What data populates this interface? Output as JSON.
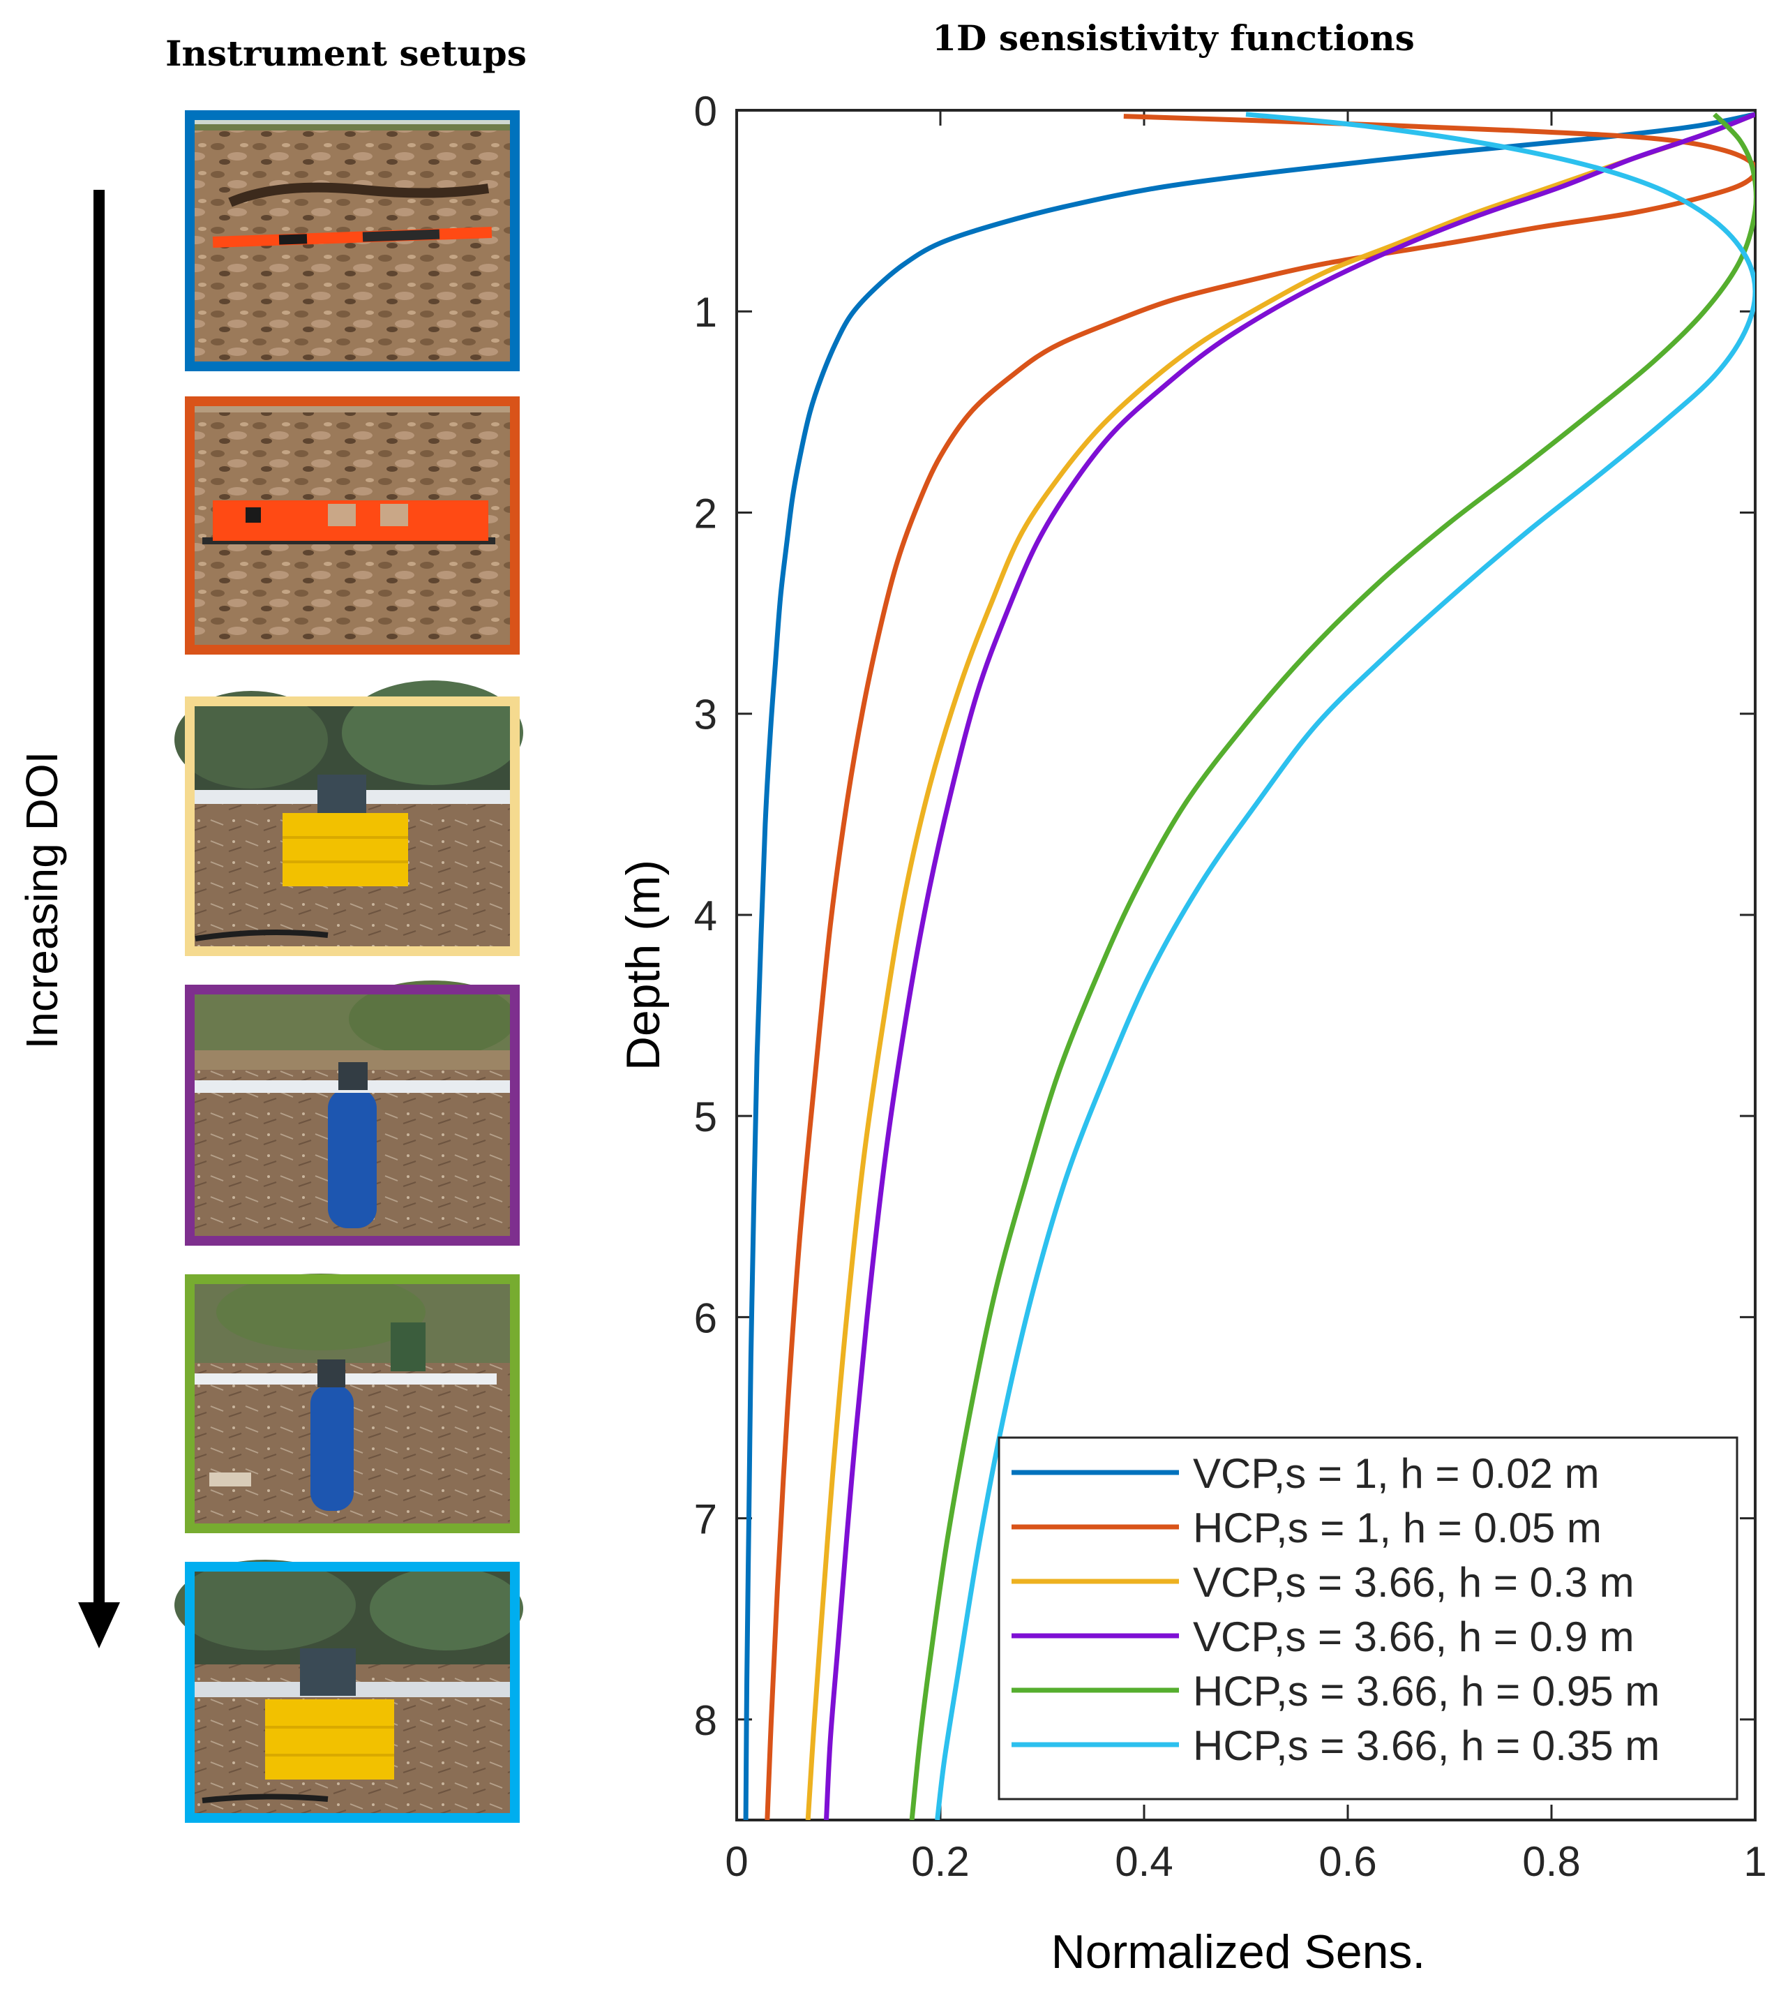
{
  "left_panel": {
    "title": "Instrument setups",
    "arrow_label": "Increasing DOI",
    "setups": [
      {
        "label": "VCP,s = 1, h = 0.02 m",
        "frame_color": "#0072BD",
        "scene": "plowed-field",
        "device": "thin-orange-bar"
      },
      {
        "label": "HCP,s = 1, h = 0.05 m",
        "frame_color": "#D95319",
        "scene": "plowed-field",
        "device": "orange-probe-box"
      },
      {
        "label": "VCP,s = 3.66, h = 0.3 m",
        "frame_color": "#F5DA8F",
        "scene": "orchard",
        "device": "boom-on-yellow-crate"
      },
      {
        "label": "VCP,s = 3.66, h = 0.9 m",
        "frame_color": "#7E2F8E",
        "scene": "garden",
        "device": "boom-on-blue-barrel"
      },
      {
        "label": "HCP,s = 3.66, h = 0.95 m",
        "frame_color": "#77AC30",
        "scene": "garden",
        "device": "boom-on-blue-barrel"
      },
      {
        "label": "HCP,s = 3.66, h = 0.35 m",
        "frame_color": "#00AEEF",
        "scene": "orchard",
        "device": "boom-on-yellow-crate"
      }
    ]
  },
  "chart_data": {
    "type": "line",
    "title": "1D sensistivity functions",
    "xlabel": "Normalized Sens.",
    "ylabel": "Depth (m)",
    "xlim": [
      0,
      1
    ],
    "ylim": [
      0,
      8.5
    ],
    "y_reversed": true,
    "x_ticks": [
      "0",
      "0.2",
      "0.4",
      "0.6",
      "0.8",
      "1"
    ],
    "y_ticks": [
      "0",
      "1",
      "2",
      "3",
      "4",
      "5",
      "6",
      "7",
      "8"
    ],
    "grid": false,
    "legend_position": "bottom-right",
    "series": [
      {
        "name": "VCP,s = 1, h = 0.02 m",
        "color": "#0072BD",
        "points": [
          [
            1.0,
            0.02
          ],
          [
            0.94,
            0.08
          ],
          [
            0.84,
            0.14
          ],
          [
            0.7,
            0.21
          ],
          [
            0.54,
            0.3
          ],
          [
            0.42,
            0.38
          ],
          [
            0.33,
            0.47
          ],
          [
            0.26,
            0.56
          ],
          [
            0.2,
            0.66
          ],
          [
            0.163,
            0.77
          ],
          [
            0.133,
            0.9
          ],
          [
            0.112,
            1.02
          ],
          [
            0.097,
            1.16
          ],
          [
            0.083,
            1.33
          ],
          [
            0.072,
            1.5
          ],
          [
            0.063,
            1.7
          ],
          [
            0.055,
            1.92
          ],
          [
            0.049,
            2.16
          ],
          [
            0.043,
            2.42
          ],
          [
            0.038,
            2.75
          ],
          [
            0.033,
            3.1
          ],
          [
            0.028,
            3.55
          ],
          [
            0.024,
            4.1
          ],
          [
            0.02,
            4.7
          ],
          [
            0.017,
            5.4
          ],
          [
            0.014,
            6.2
          ],
          [
            0.012,
            7.0
          ],
          [
            0.01,
            7.8
          ],
          [
            0.009,
            8.5
          ]
        ]
      },
      {
        "name": "HCP,s = 1, h = 0.05 m",
        "color": "#D95319",
        "points": [
          [
            0.38,
            0.03
          ],
          [
            0.56,
            0.06
          ],
          [
            0.76,
            0.1
          ],
          [
            0.9,
            0.14
          ],
          [
            0.97,
            0.2
          ],
          [
            1.0,
            0.28
          ],
          [
            0.99,
            0.36
          ],
          [
            0.95,
            0.43
          ],
          [
            0.88,
            0.51
          ],
          [
            0.79,
            0.58
          ],
          [
            0.7,
            0.66
          ],
          [
            0.58,
            0.76
          ],
          [
            0.5,
            0.85
          ],
          [
            0.43,
            0.94
          ],
          [
            0.37,
            1.05
          ],
          [
            0.31,
            1.18
          ],
          [
            0.27,
            1.32
          ],
          [
            0.23,
            1.5
          ],
          [
            0.2,
            1.72
          ],
          [
            0.178,
            1.96
          ],
          [
            0.158,
            2.24
          ],
          [
            0.142,
            2.55
          ],
          [
            0.125,
            2.95
          ],
          [
            0.108,
            3.45
          ],
          [
            0.092,
            4.05
          ],
          [
            0.077,
            4.8
          ],
          [
            0.062,
            5.6
          ],
          [
            0.05,
            6.45
          ],
          [
            0.04,
            7.35
          ],
          [
            0.034,
            8.0
          ],
          [
            0.03,
            8.5
          ]
        ]
      },
      {
        "name": "VCP,s = 3.66, h = 0.3 m",
        "color": "#EDB120",
        "points": [
          [
            1.0,
            0.02
          ],
          [
            0.95,
            0.12
          ],
          [
            0.88,
            0.24
          ],
          [
            0.8,
            0.38
          ],
          [
            0.72,
            0.52
          ],
          [
            0.65,
            0.66
          ],
          [
            0.58,
            0.8
          ],
          [
            0.52,
            0.96
          ],
          [
            0.46,
            1.14
          ],
          [
            0.41,
            1.33
          ],
          [
            0.36,
            1.56
          ],
          [
            0.32,
            1.8
          ],
          [
            0.28,
            2.1
          ],
          [
            0.25,
            2.45
          ],
          [
            0.22,
            2.85
          ],
          [
            0.19,
            3.35
          ],
          [
            0.165,
            3.9
          ],
          [
            0.145,
            4.5
          ],
          [
            0.125,
            5.2
          ],
          [
            0.108,
            6.0
          ],
          [
            0.094,
            6.8
          ],
          [
            0.082,
            7.6
          ],
          [
            0.075,
            8.1
          ],
          [
            0.07,
            8.5
          ]
        ]
      },
      {
        "name": "VCP,s = 3.66, h = 0.9 m",
        "color": "#7E0FD4",
        "points": [
          [
            1.0,
            0.02
          ],
          [
            0.95,
            0.12
          ],
          [
            0.88,
            0.24
          ],
          [
            0.81,
            0.38
          ],
          [
            0.73,
            0.52
          ],
          [
            0.66,
            0.66
          ],
          [
            0.59,
            0.82
          ],
          [
            0.53,
            0.98
          ],
          [
            0.47,
            1.17
          ],
          [
            0.42,
            1.37
          ],
          [
            0.37,
            1.6
          ],
          [
            0.33,
            1.86
          ],
          [
            0.295,
            2.15
          ],
          [
            0.265,
            2.5
          ],
          [
            0.236,
            2.9
          ],
          [
            0.21,
            3.4
          ],
          [
            0.186,
            3.95
          ],
          [
            0.165,
            4.55
          ],
          [
            0.146,
            5.2
          ],
          [
            0.128,
            6.0
          ],
          [
            0.113,
            6.8
          ],
          [
            0.1,
            7.6
          ],
          [
            0.092,
            8.1
          ],
          [
            0.088,
            8.5
          ]
        ]
      },
      {
        "name": "HCP,s = 3.66, h = 0.95 m",
        "color": "#55AE2E",
        "points": [
          [
            0.96,
            0.02
          ],
          [
            0.985,
            0.15
          ],
          [
            0.998,
            0.3
          ],
          [
            1.0,
            0.5
          ],
          [
            0.985,
            0.75
          ],
          [
            0.95,
            1.0
          ],
          [
            0.9,
            1.25
          ],
          [
            0.84,
            1.5
          ],
          [
            0.77,
            1.78
          ],
          [
            0.7,
            2.05
          ],
          [
            0.63,
            2.35
          ],
          [
            0.56,
            2.7
          ],
          [
            0.5,
            3.05
          ],
          [
            0.44,
            3.45
          ],
          [
            0.39,
            3.9
          ],
          [
            0.35,
            4.35
          ],
          [
            0.315,
            4.8
          ],
          [
            0.285,
            5.3
          ],
          [
            0.255,
            5.85
          ],
          [
            0.23,
            6.45
          ],
          [
            0.207,
            7.1
          ],
          [
            0.19,
            7.7
          ],
          [
            0.18,
            8.1
          ],
          [
            0.172,
            8.5
          ]
        ]
      },
      {
        "name": "HCP,s = 3.66, h = 0.35 m",
        "color": "#2CC0EE",
        "points": [
          [
            0.5,
            0.02
          ],
          [
            0.62,
            0.08
          ],
          [
            0.74,
            0.17
          ],
          [
            0.84,
            0.28
          ],
          [
            0.91,
            0.4
          ],
          [
            0.96,
            0.55
          ],
          [
            0.99,
            0.72
          ],
          [
            1.0,
            0.9
          ],
          [
            0.99,
            1.1
          ],
          [
            0.96,
            1.32
          ],
          [
            0.91,
            1.55
          ],
          [
            0.85,
            1.8
          ],
          [
            0.78,
            2.08
          ],
          [
            0.71,
            2.38
          ],
          [
            0.64,
            2.7
          ],
          [
            0.57,
            3.05
          ],
          [
            0.51,
            3.45
          ],
          [
            0.455,
            3.85
          ],
          [
            0.405,
            4.3
          ],
          [
            0.362,
            4.8
          ],
          [
            0.324,
            5.3
          ],
          [
            0.292,
            5.85
          ],
          [
            0.264,
            6.45
          ],
          [
            0.239,
            7.1
          ],
          [
            0.218,
            7.75
          ],
          [
            0.204,
            8.2
          ],
          [
            0.197,
            8.5
          ]
        ]
      }
    ]
  }
}
